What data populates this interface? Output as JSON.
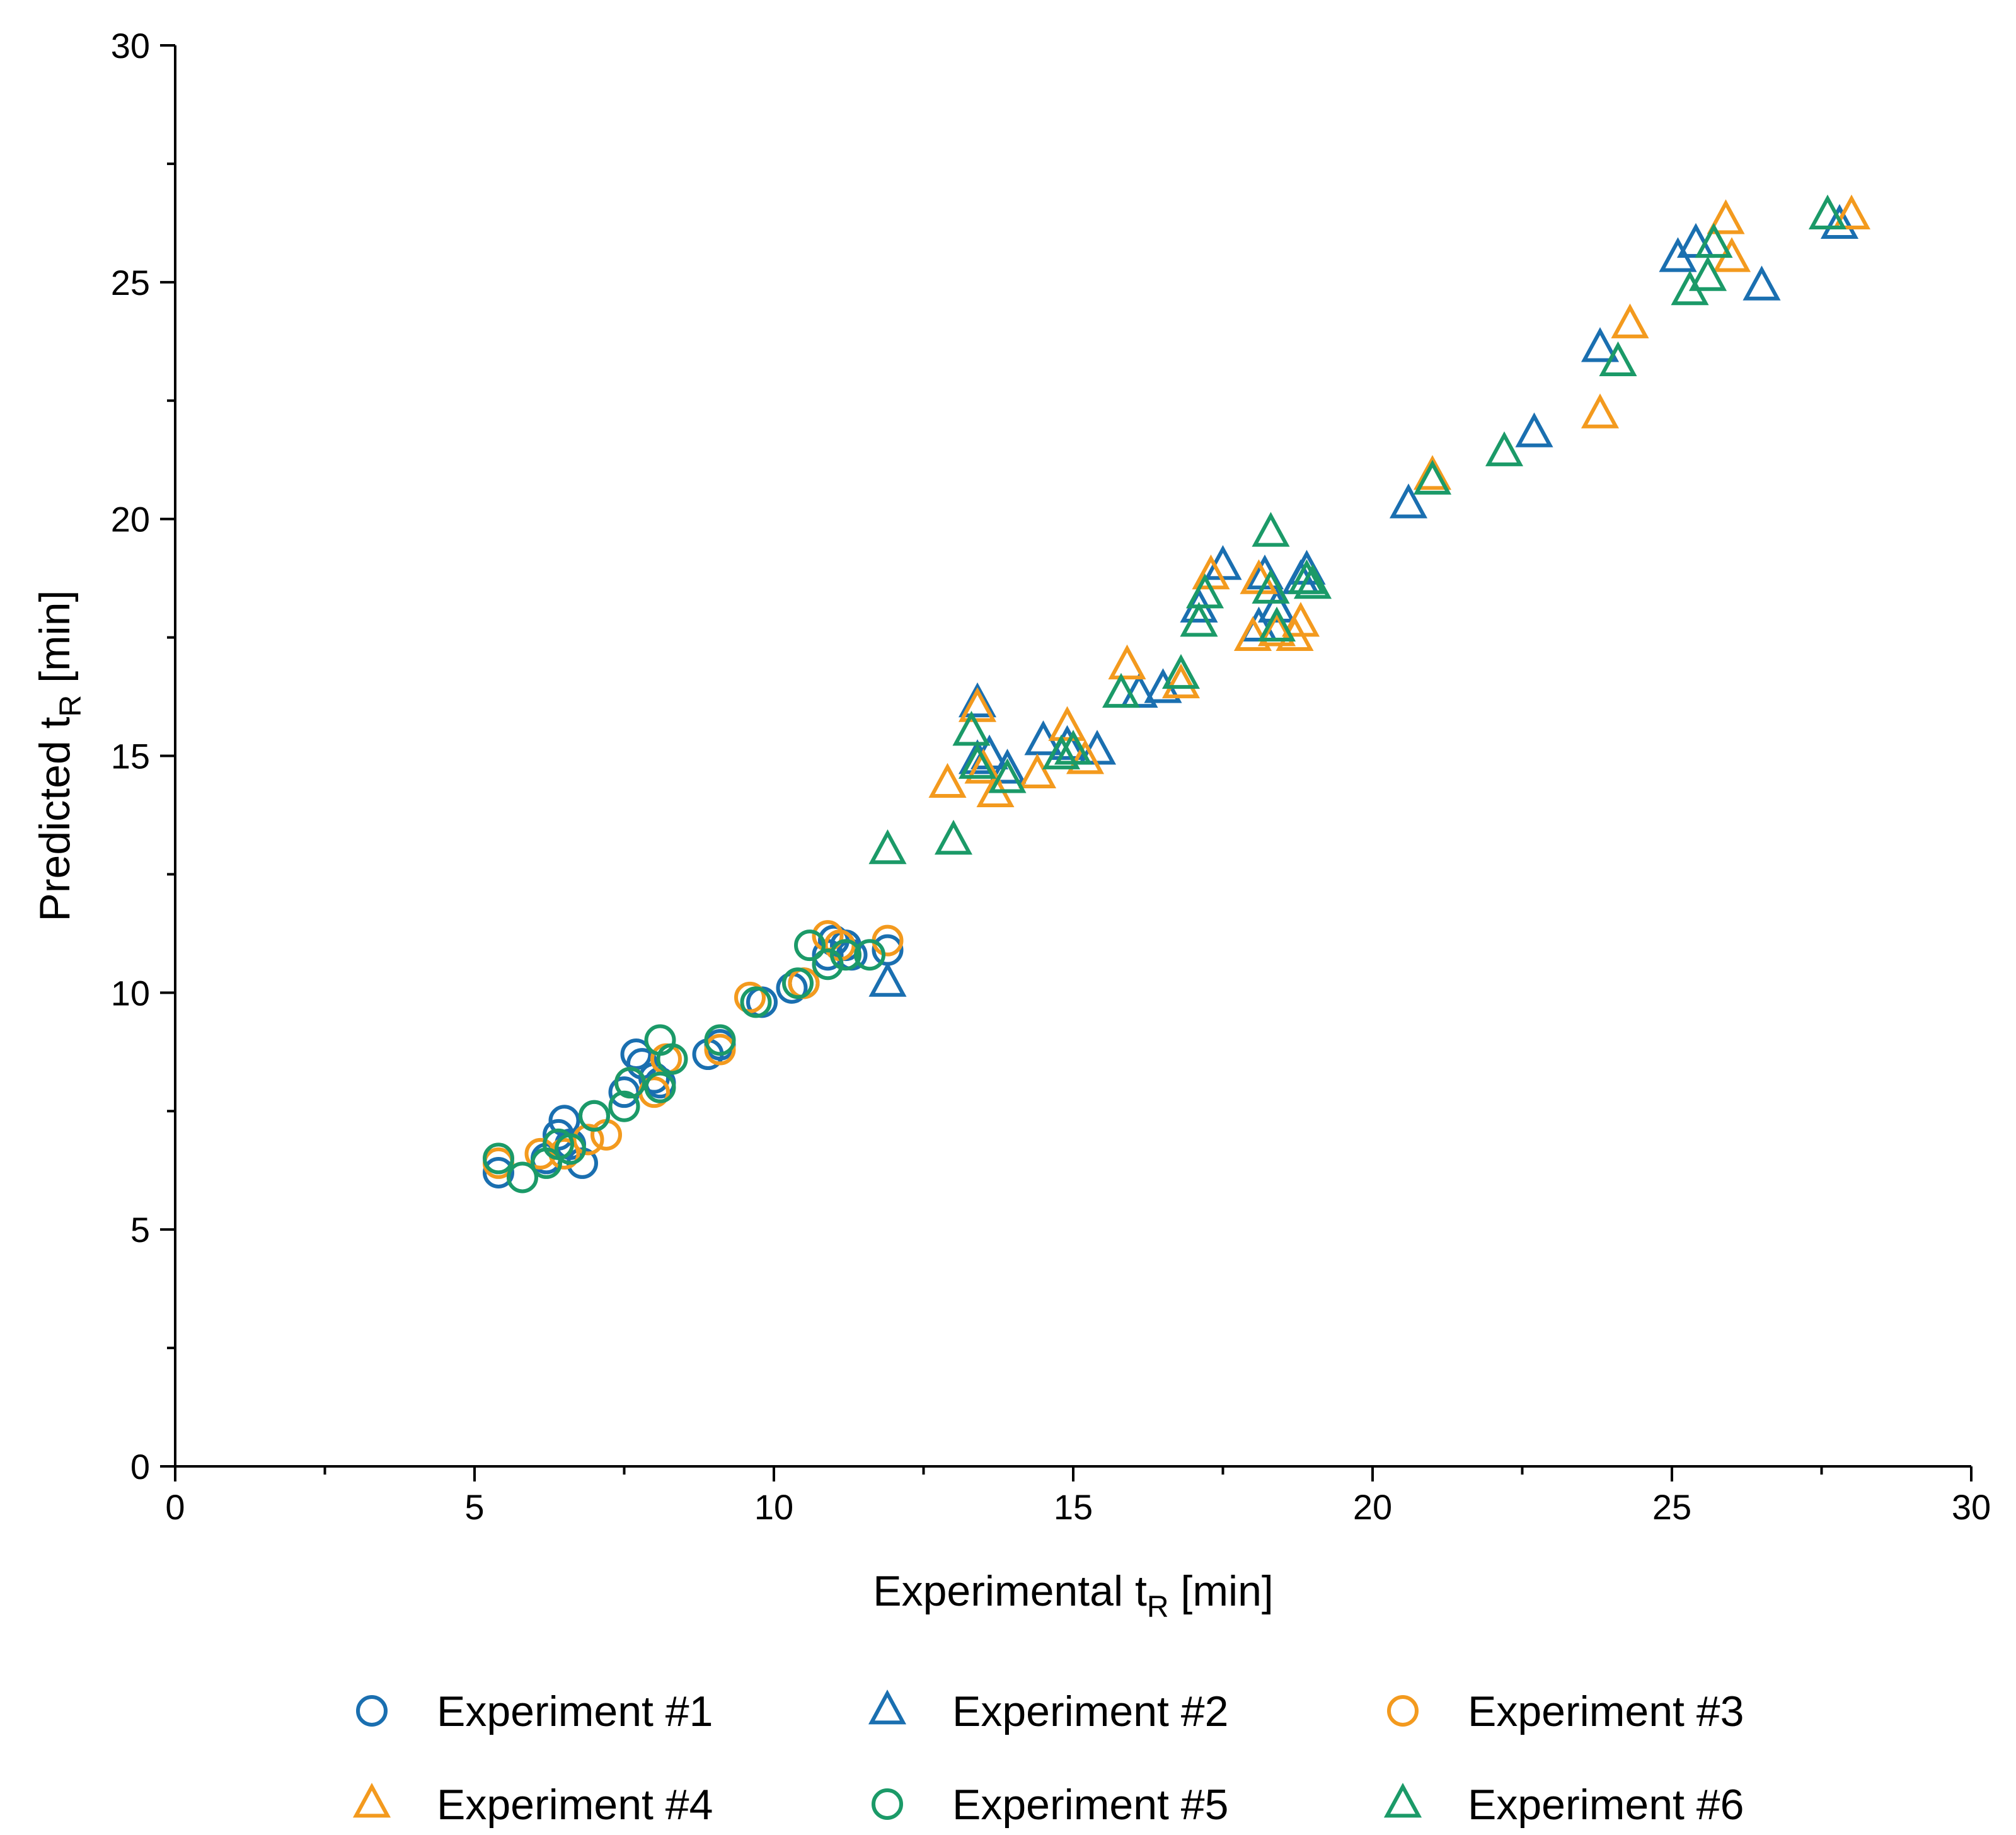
{
  "chart_data": {
    "type": "scatter",
    "xlabel": "Experimental t",
    "xlabel_sub": "R",
    "xlabel_unit": " [min]",
    "ylabel": "Predicted t",
    "ylabel_sub": "R",
    "ylabel_unit": " [min]",
    "xlim": [
      0,
      30
    ],
    "ylim": [
      0,
      30
    ],
    "x_ticks": [
      0,
      5,
      10,
      15,
      20,
      25,
      30
    ],
    "y_ticks": [
      0,
      5,
      10,
      15,
      20,
      25,
      30
    ],
    "x_tick_labels": [
      "0",
      "5",
      "10",
      "15",
      "20",
      "25",
      "30"
    ],
    "y_tick_labels": [
      "0",
      "5",
      "10",
      "15",
      "20",
      "25",
      "30"
    ],
    "grid": false,
    "legend_position": "bottom",
    "series": [
      {
        "name": "Experiment #1",
        "marker": "circle",
        "color": "#1a6fb0",
        "points": [
          [
            5.4,
            6.2
          ],
          [
            6.2,
            6.5
          ],
          [
            6.4,
            7.0
          ],
          [
            6.5,
            7.3
          ],
          [
            6.6,
            6.8
          ],
          [
            6.8,
            6.4
          ],
          [
            7.0,
            7.4
          ],
          [
            7.5,
            7.9
          ],
          [
            7.7,
            8.7
          ],
          [
            7.8,
            8.5
          ],
          [
            8.0,
            8.2
          ],
          [
            8.1,
            8.1
          ],
          [
            8.9,
            8.7
          ],
          [
            9.1,
            8.9
          ],
          [
            9.8,
            9.8
          ],
          [
            10.3,
            10.1
          ],
          [
            10.5,
            10.2
          ],
          [
            10.9,
            10.8
          ],
          [
            11.0,
            11.1
          ],
          [
            11.2,
            11.0
          ],
          [
            11.3,
            10.8
          ],
          [
            11.9,
            10.9
          ]
        ]
      },
      {
        "name": "Experiment #2",
        "marker": "triangle",
        "color": "#1a6fb0",
        "points": [
          [
            11.9,
            10.2
          ],
          [
            13.4,
            16.1
          ],
          [
            13.4,
            14.9
          ],
          [
            13.6,
            15.0
          ],
          [
            13.9,
            14.7
          ],
          [
            14.5,
            15.3
          ],
          [
            14.9,
            15.2
          ],
          [
            15.4,
            15.1
          ],
          [
            16.1,
            16.3
          ],
          [
            16.5,
            16.4
          ],
          [
            17.1,
            18.1
          ],
          [
            17.5,
            19.0
          ],
          [
            18.1,
            17.7
          ],
          [
            18.2,
            18.8
          ],
          [
            18.4,
            18.1
          ],
          [
            18.8,
            18.7
          ],
          [
            18.9,
            18.9
          ],
          [
            20.6,
            20.3
          ],
          [
            22.7,
            21.8
          ],
          [
            23.8,
            23.6
          ],
          [
            25.1,
            25.5
          ],
          [
            25.4,
            25.8
          ],
          [
            26.5,
            24.9
          ],
          [
            27.8,
            26.2
          ]
        ]
      },
      {
        "name": "Experiment #3",
        "marker": "circle",
        "color": "#f39a1e",
        "points": [
          [
            5.4,
            6.4
          ],
          [
            6.1,
            6.6
          ],
          [
            6.5,
            6.6
          ],
          [
            6.9,
            6.9
          ],
          [
            7.2,
            7.0
          ],
          [
            7.6,
            8.1
          ],
          [
            8.0,
            7.9
          ],
          [
            8.2,
            8.6
          ],
          [
            9.1,
            8.8
          ],
          [
            9.6,
            9.9
          ],
          [
            10.5,
            10.2
          ],
          [
            10.9,
            11.2
          ],
          [
            11.1,
            11.0
          ],
          [
            11.9,
            11.1
          ]
        ]
      },
      {
        "name": "Experiment #4",
        "marker": "triangle",
        "color": "#f39a1e",
        "points": [
          [
            12.9,
            14.4
          ],
          [
            13.4,
            16.0
          ],
          [
            13.5,
            14.7
          ],
          [
            13.7,
            14.2
          ],
          [
            14.4,
            14.6
          ],
          [
            14.9,
            15.6
          ],
          [
            15.2,
            14.9
          ],
          [
            15.9,
            16.9
          ],
          [
            16.8,
            16.5
          ],
          [
            17.3,
            18.8
          ],
          [
            18.0,
            17.5
          ],
          [
            18.1,
            18.7
          ],
          [
            18.4,
            17.6
          ],
          [
            18.7,
            17.5
          ],
          [
            18.8,
            17.8
          ],
          [
            21.0,
            20.9
          ],
          [
            23.8,
            22.2
          ],
          [
            24.3,
            24.1
          ],
          [
            25.9,
            26.3
          ],
          [
            26.0,
            25.5
          ],
          [
            28.0,
            26.4
          ]
        ]
      },
      {
        "name": "Experiment #5",
        "marker": "circle",
        "color": "#1b9a68",
        "points": [
          [
            5.4,
            6.5
          ],
          [
            5.8,
            6.1
          ],
          [
            6.2,
            6.4
          ],
          [
            6.4,
            6.8
          ],
          [
            6.6,
            6.7
          ],
          [
            7.0,
            7.4
          ],
          [
            7.5,
            7.6
          ],
          [
            7.6,
            8.1
          ],
          [
            8.1,
            9.0
          ],
          [
            8.1,
            8.0
          ],
          [
            8.3,
            8.6
          ],
          [
            9.1,
            9.0
          ],
          [
            9.7,
            9.8
          ],
          [
            10.4,
            10.2
          ],
          [
            10.6,
            11.0
          ],
          [
            10.9,
            10.6
          ],
          [
            11.2,
            10.8
          ],
          [
            11.6,
            10.8
          ]
        ]
      },
      {
        "name": "Experiment #6",
        "marker": "triangle",
        "color": "#1b9a68",
        "points": [
          [
            11.9,
            13.0
          ],
          [
            13.0,
            13.2
          ],
          [
            13.3,
            15.5
          ],
          [
            13.4,
            14.8
          ],
          [
            13.9,
            14.5
          ],
          [
            14.8,
            15.0
          ],
          [
            15.0,
            15.1
          ],
          [
            15.8,
            16.3
          ],
          [
            16.8,
            16.7
          ],
          [
            17.1,
            17.8
          ],
          [
            17.2,
            18.4
          ],
          [
            18.3,
            19.7
          ],
          [
            18.3,
            18.5
          ],
          [
            18.4,
            17.7
          ],
          [
            18.9,
            18.7
          ],
          [
            19.0,
            18.6
          ],
          [
            21.0,
            20.8
          ],
          [
            22.2,
            21.4
          ],
          [
            24.1,
            23.3
          ],
          [
            25.3,
            24.8
          ],
          [
            25.6,
            25.1
          ],
          [
            25.7,
            25.8
          ],
          [
            27.6,
            26.4
          ]
        ]
      }
    ]
  }
}
